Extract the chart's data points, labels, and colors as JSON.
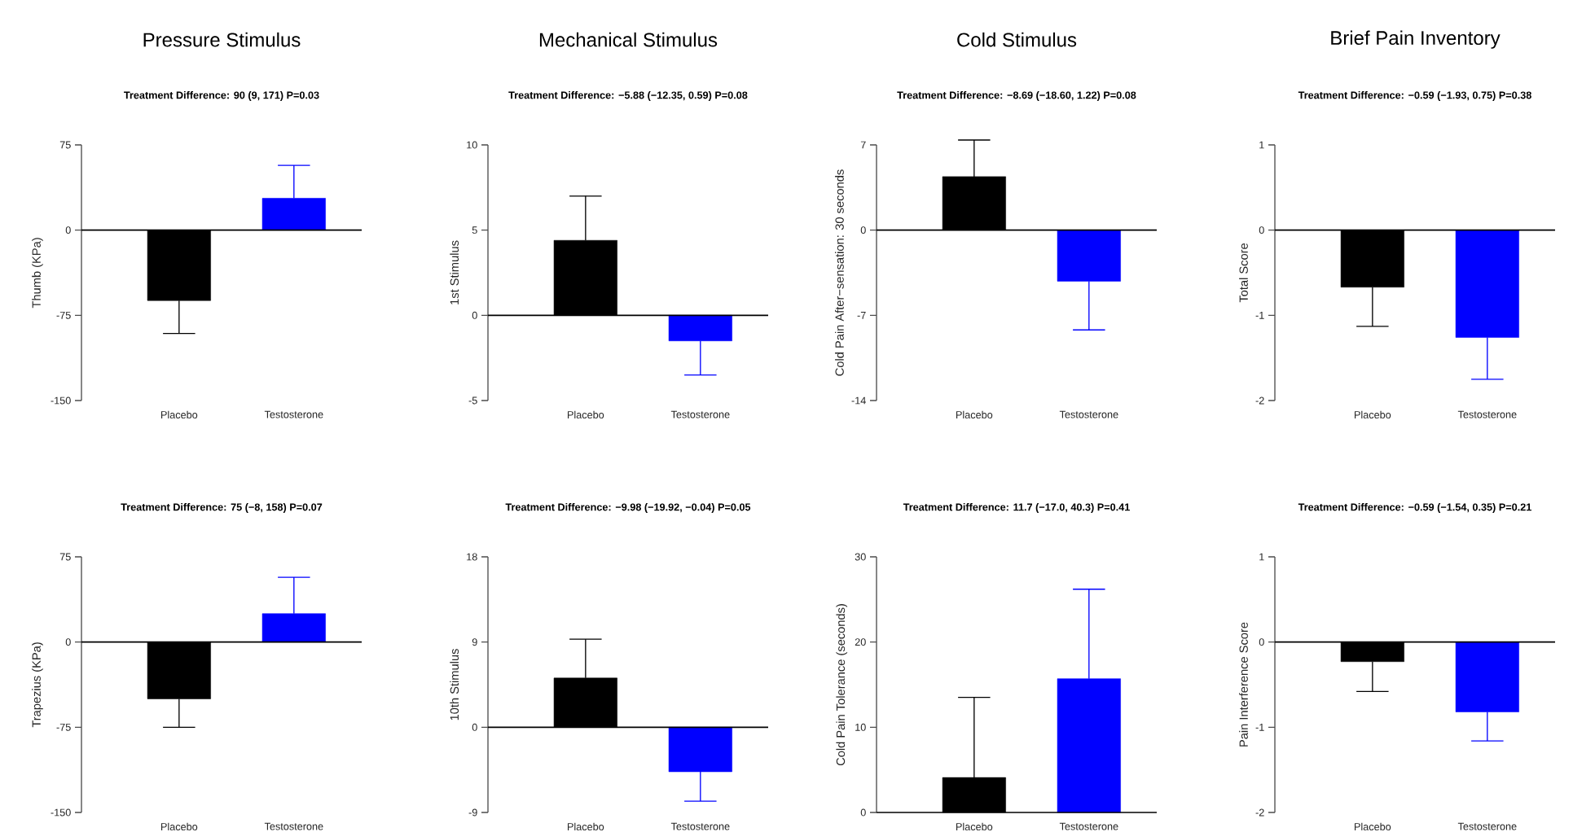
{
  "chart_data": [
    {
      "type": "bar",
      "title": "Pressure Stimulus",
      "subtitle": "Treatment Difference: 90 (9, 171) P=0.03",
      "ylabel": "Thumb (KPa)",
      "categories": [
        "Placebo",
        "Testosterone"
      ],
      "values": [
        -62,
        28
      ],
      "colors": [
        "#000000",
        "#0000ff"
      ],
      "errors": [
        [
          -91,
          -62
        ],
        [
          28,
          57
        ]
      ],
      "ylim": [
        -150,
        75
      ],
      "yticks": [
        -150,
        -75,
        0,
        75
      ]
    },
    {
      "type": "bar",
      "title": "Mechanical Stimulus",
      "subtitle": "Treatment Difference: −5.88 (−12.35, 0.59) P=0.08",
      "ylabel": "1st Stimulus",
      "categories": [
        "Placebo",
        "Testosterone"
      ],
      "values": [
        4.4,
        -1.5
      ],
      "colors": [
        "#000000",
        "#0000ff"
      ],
      "errors": [
        [
          4.4,
          7.0
        ],
        [
          -3.5,
          -1.5
        ]
      ],
      "ylim": [
        -5,
        10
      ],
      "yticks": [
        -5,
        0,
        5,
        10
      ]
    },
    {
      "type": "bar",
      "title": "Cold Stimulus",
      "subtitle": "Treatment Difference: −8.69 (−18.60, 1.22) P=0.08",
      "ylabel": "Cold Pain After−sensation: 30 seconds",
      "categories": [
        "Placebo",
        "Testosterone"
      ],
      "values": [
        4.4,
        -4.2
      ],
      "colors": [
        "#000000",
        "#0000ff"
      ],
      "errors": [
        [
          4.4,
          7.4
        ],
        [
          -8.2,
          -4.2
        ]
      ],
      "ylim": [
        -14,
        7
      ],
      "yticks": [
        -14,
        -7,
        0,
        7
      ]
    },
    {
      "type": "bar",
      "title": "Brief Pain Inventory",
      "subtitle": "Treatment Difference: −0.59 (−1.93, 0.75) P=0.38",
      "ylabel": "Total Score",
      "categories": [
        "Placebo",
        "Testosterone"
      ],
      "values": [
        -0.67,
        -1.26
      ],
      "colors": [
        "#000000",
        "#0000ff"
      ],
      "errors": [
        [
          -1.13,
          -0.67
        ],
        [
          -1.75,
          -1.26
        ]
      ],
      "ylim": [
        -2,
        1
      ],
      "yticks": [
        -2,
        -1,
        0,
        1
      ]
    },
    {
      "type": "bar",
      "subtitle": "Treatment Difference: 75 (−8, 158) P=0.07",
      "ylabel": "Trapezius (KPa)",
      "categories": [
        "Placebo",
        "Testosterone"
      ],
      "values": [
        -50,
        25
      ],
      "colors": [
        "#000000",
        "#0000ff"
      ],
      "errors": [
        [
          -75,
          -50
        ],
        [
          25,
          57
        ]
      ],
      "ylim": [
        -150,
        75
      ],
      "yticks": [
        -150,
        -75,
        0,
        75
      ]
    },
    {
      "type": "bar",
      "subtitle": "Treatment Difference: −9.98 (−19.92, −0.04) P=0.05",
      "ylabel": "10th Stimulus",
      "categories": [
        "Placebo",
        "Testosterone"
      ],
      "values": [
        5.2,
        -4.7
      ],
      "colors": [
        "#000000",
        "#0000ff"
      ],
      "errors": [
        [
          5.2,
          9.3
        ],
        [
          -7.8,
          -4.7
        ]
      ],
      "ylim": [
        -9,
        18
      ],
      "yticks": [
        -9,
        0,
        9,
        18
      ]
    },
    {
      "type": "bar",
      "subtitle": "Treatment Difference: 11.7 (−17.0, 40.3) P=0.41",
      "ylabel": "Cold Pain Tolerance  (seconds)",
      "categories": [
        "Placebo",
        "Testosterone"
      ],
      "values": [
        4.1,
        15.7
      ],
      "colors": [
        "#000000",
        "#0000ff"
      ],
      "errors": [
        [
          4.1,
          13.5
        ],
        [
          15.7,
          26.2
        ]
      ],
      "ylim": [
        0,
        30
      ],
      "yticks": [
        0,
        10,
        20,
        30
      ]
    },
    {
      "type": "bar",
      "subtitle": "Treatment Difference: −0.59 (−1.54, 0.35) P=0.21",
      "ylabel": "Pain Interference Score",
      "categories": [
        "Placebo",
        "Testosterone"
      ],
      "values": [
        -0.23,
        -0.82
      ],
      "colors": [
        "#000000",
        "#0000ff"
      ],
      "errors": [
        [
          -0.58,
          -0.23
        ],
        [
          -1.16,
          -0.82
        ]
      ],
      "ylim": [
        -2,
        1
      ],
      "yticks": [
        -2,
        -1,
        0,
        1
      ]
    }
  ]
}
